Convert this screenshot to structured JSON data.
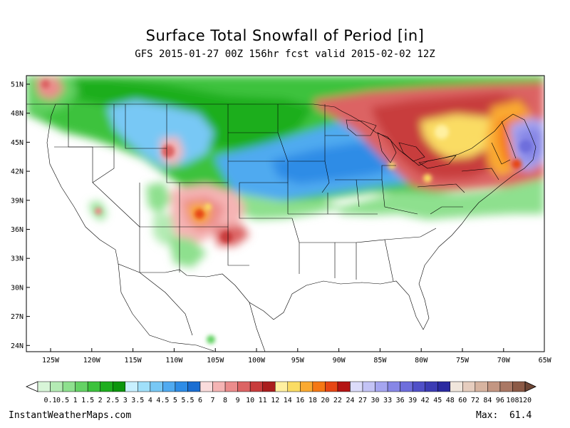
{
  "title": "Surface Total Snowfall of Period [in]",
  "subtitle": "GFS 2015-01-27 00Z 156hr fcst valid 2015-02-02 12Z",
  "lat_labels": [
    "51N",
    "48N",
    "45N",
    "42N",
    "39N",
    "36N",
    "33N",
    "30N",
    "27N",
    "24N"
  ],
  "lon_labels": [
    "125W",
    "120W",
    "115W",
    "110W",
    "105W",
    "100W",
    "95W",
    "90W",
    "85W",
    "80W",
    "75W",
    "70W",
    "65W"
  ],
  "colorbar": {
    "levels": [
      "0.1",
      "0.5",
      "1",
      "1.5",
      "2",
      "2.5",
      "3",
      "3.5",
      "4",
      "4.5",
      "5",
      "5.5",
      "6",
      "7",
      "8",
      "9",
      "10",
      "11",
      "12",
      "14",
      "16",
      "18",
      "20",
      "22",
      "24",
      "27",
      "30",
      "33",
      "36",
      "39",
      "42",
      "45",
      "48",
      "60",
      "72",
      "84",
      "96",
      "108",
      "120"
    ],
    "colors": [
      "#d8f5d8",
      "#b4ebb4",
      "#8ee08e",
      "#64d264",
      "#3cc23c",
      "#1eae1e",
      "#0c960c",
      "#c8f0ff",
      "#a0e0fa",
      "#78c8f5",
      "#50aaf0",
      "#2e8ce6",
      "#1a6ed2",
      "#fadcdc",
      "#f5b4b4",
      "#eb8c8c",
      "#dc6464",
      "#c83c3c",
      "#aa1e1e",
      "#fff0a0",
      "#fadc64",
      "#faaa32",
      "#f57814",
      "#e64614",
      "#b41414",
      "#dcdcfa",
      "#c3c3f5",
      "#a5a5f0",
      "#8787e6",
      "#6e6edc",
      "#5050c8",
      "#3c3cb4",
      "#2a2aa0",
      "#f0e6dc",
      "#e6cdbe",
      "#d7b4a0",
      "#c39682",
      "#aa7864",
      "#8c5a46"
    ]
  },
  "footer": {
    "source": "InstantWeatherMaps.com",
    "max_label": "Max:",
    "max_value": "61.4"
  },
  "colors": {
    "frame": "#000000",
    "lines": "#000000"
  }
}
